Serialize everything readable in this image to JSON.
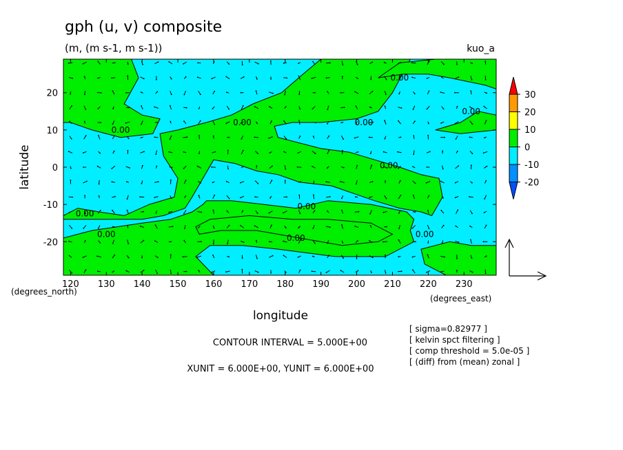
{
  "chart_data": {
    "type": "contour",
    "title": "gph (u, v) composite",
    "subtitle": "(m, (m s-1, m s-1))",
    "run_label": "kuo_a",
    "xlabel": "longitude",
    "ylabel": "latitude",
    "x_unit_label": "(degrees_east)",
    "y_unit_label": "(degrees_north)",
    "xlim": [
      118,
      239
    ],
    "ylim": [
      -29,
      29
    ],
    "x_ticks": [
      "120",
      "130",
      "140",
      "150",
      "160",
      "170",
      "180",
      "190",
      "200",
      "210",
      "220",
      "230"
    ],
    "y_ticks": [
      "20",
      "10",
      "0",
      "-10",
      "-20"
    ],
    "colorbar": {
      "labels": [
        "30",
        "20",
        "10",
        "0",
        "-10",
        "-20"
      ],
      "colors": [
        "#ff0000",
        "#ff9a00",
        "#ffff00",
        "#00ee00",
        "#00eeff",
        "#0090ff",
        "#0050ff"
      ],
      "fill_positive": "#00ee00",
      "fill_negative": "#00eeff"
    },
    "contour_labels": [
      {
        "text": "0.00",
        "x": 134,
        "y": 10
      },
      {
        "text": "0.00",
        "x": 168,
        "y": 12
      },
      {
        "text": "0.00",
        "x": 202,
        "y": 12
      },
      {
        "text": "0.00",
        "x": 212,
        "y": 24
      },
      {
        "text": "0.00",
        "x": 232,
        "y": 15
      },
      {
        "text": "0.00",
        "x": 209,
        "y": 0.5
      },
      {
        "text": "0.00",
        "x": 124,
        "y": -12.5
      },
      {
        "text": "0.00",
        "x": 130,
        "y": -18
      },
      {
        "text": "0.00",
        "x": 183,
        "y": -19
      },
      {
        "text": "0.00",
        "x": 186,
        "y": -10.5
      },
      {
        "text": "0.00",
        "x": 219,
        "y": -18
      }
    ],
    "positive_regions": [
      [
        [
          118,
          -13
        ],
        [
          122,
          -11
        ],
        [
          128,
          -12
        ],
        [
          135,
          -13
        ],
        [
          142,
          -10
        ],
        [
          149,
          -8
        ],
        [
          150,
          -3
        ],
        [
          146,
          3
        ],
        [
          145,
          9
        ],
        [
          150,
          10
        ],
        [
          158,
          12
        ],
        [
          165,
          14
        ],
        [
          171,
          17
        ],
        [
          179,
          20
        ],
        [
          185,
          25
        ],
        [
          190,
          29
        ],
        [
          215,
          29
        ],
        [
          210,
          20
        ],
        [
          206,
          15
        ],
        [
          200,
          13
        ],
        [
          190,
          12
        ],
        [
          182,
          12
        ],
        [
          177,
          11
        ],
        [
          178,
          8
        ],
        [
          190,
          5
        ],
        [
          198,
          4
        ],
        [
          205,
          2
        ],
        [
          212,
          0
        ],
        [
          218,
          -2
        ],
        [
          223,
          -3
        ],
        [
          224,
          -8
        ],
        [
          221,
          -13
        ],
        [
          218,
          -12
        ],
        [
          212,
          -11
        ],
        [
          205,
          -9
        ],
        [
          193,
          -5
        ],
        [
          184,
          -4
        ],
        [
          178,
          -2
        ],
        [
          172,
          -1
        ],
        [
          166,
          1
        ],
        [
          160,
          2
        ],
        [
          154,
          -8
        ],
        [
          152,
          -11
        ],
        [
          146,
          -13
        ],
        [
          140,
          -14
        ],
        [
          133,
          -14
        ],
        [
          125,
          -14
        ],
        [
          118,
          -14
        ]
      ],
      [
        [
          118,
          -19
        ],
        [
          126,
          -17
        ],
        [
          133,
          -16
        ],
        [
          140,
          -15
        ],
        [
          148,
          -14
        ],
        [
          154,
          -12
        ],
        [
          157,
          -10
        ],
        [
          158,
          -9
        ],
        [
          165,
          -9
        ],
        [
          174,
          -10
        ],
        [
          183,
          -11
        ],
        [
          192,
          -9
        ],
        [
          204,
          -10
        ],
        [
          214,
          -12
        ],
        [
          216,
          -14
        ],
        [
          215,
          -17
        ],
        [
          216,
          -20
        ],
        [
          208,
          -24
        ],
        [
          194,
          -24
        ],
        [
          178,
          -22
        ],
        [
          168,
          -21
        ],
        [
          159,
          -21
        ],
        [
          155,
          -24
        ],
        [
          159,
          -28
        ],
        [
          160,
          -29
        ],
        [
          118,
          -29
        ]
      ],
      [
        [
          155,
          -16
        ],
        [
          159,
          -14
        ],
        [
          170,
          -13
        ],
        [
          182,
          -14
        ],
        [
          192,
          -14
        ],
        [
          204,
          -15
        ],
        [
          210,
          -18
        ],
        [
          206,
          -20
        ],
        [
          196,
          -21
        ],
        [
          184,
          -19
        ],
        [
          172,
          -17
        ],
        [
          162,
          -17
        ],
        [
          156,
          -18
        ]
      ],
      [
        [
          118,
          29
        ],
        [
          137,
          29
        ],
        [
          139,
          24
        ],
        [
          135,
          17
        ],
        [
          140,
          14
        ],
        [
          145,
          13
        ],
        [
          143,
          9
        ],
        [
          134,
          8
        ],
        [
          126,
          10
        ],
        [
          120,
          12
        ],
        [
          118,
          12
        ]
      ],
      [
        [
          206,
          24
        ],
        [
          213,
          25
        ],
        [
          220,
          25
        ],
        [
          226,
          24
        ],
        [
          236,
          22
        ],
        [
          239,
          21
        ],
        [
          239,
          29
        ],
        [
          222,
          29
        ],
        [
          212,
          28
        ]
      ],
      [
        [
          222,
          10
        ],
        [
          229,
          12
        ],
        [
          234,
          15
        ],
        [
          239,
          14
        ],
        [
          239,
          10
        ],
        [
          229,
          9
        ]
      ],
      [
        [
          218,
          -22
        ],
        [
          226,
          -20
        ],
        [
          232,
          -21
        ],
        [
          239,
          -21
        ],
        [
          239,
          -29
        ],
        [
          225,
          -29
        ],
        [
          219,
          -26
        ]
      ]
    ],
    "vector_reference": {
      "xunit": 6.0,
      "yunit": 6.0
    }
  },
  "annotations": {
    "contour_interval": "CONTOUR INTERVAL = 5.000E+00",
    "units": "XUNIT = 6.000E+00, YUNIT = 6.000E+00",
    "notes": [
      "[ sigma=0.82977 ]",
      "[ kelvin spct filtering ]",
      "[ comp threshold = 5.0e-05 ]",
      "[ (diff) from (mean) zonal ]"
    ]
  }
}
